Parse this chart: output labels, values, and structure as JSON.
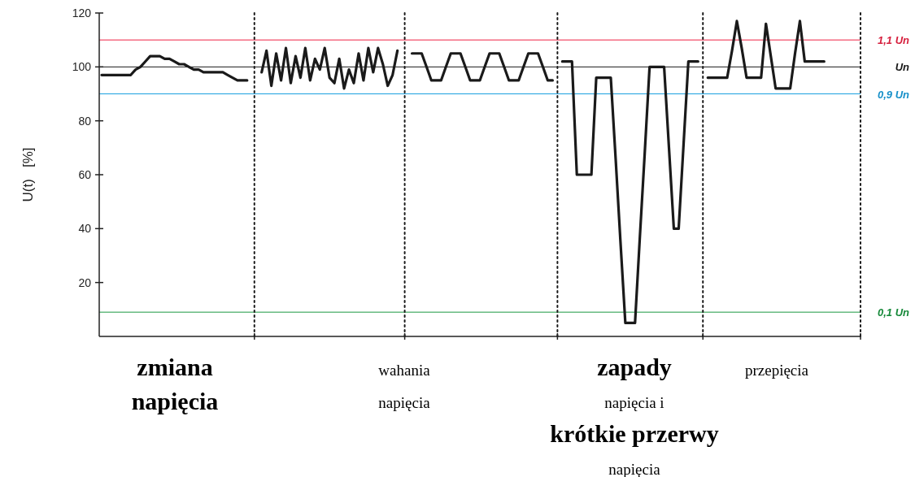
{
  "chart_data": {
    "type": "line",
    "ylabel": "U(t)   [%]",
    "ylim": [
      0,
      120
    ],
    "yticks": [
      20,
      40,
      60,
      80,
      100,
      120
    ],
    "categories": [
      null,
      null,
      null,
      null,
      null,
      null,
      null,
      null,
      null,
      null,
      null,
      null,
      null,
      null,
      null,
      null,
      null,
      null,
      null,
      null,
      null,
      null,
      null,
      null,
      null,
      null,
      null,
      null,
      null,
      null,
      null,
      null,
      null,
      null,
      null,
      null,
      null,
      null,
      null,
      null,
      null,
      null,
      null,
      null,
      null,
      null,
      null,
      null,
      null,
      null,
      null,
      null,
      null,
      null,
      null,
      null,
      null,
      null,
      null,
      null,
      null,
      null,
      null,
      null,
      null,
      null,
      null,
      null,
      null,
      null,
      null,
      null,
      null,
      null,
      null,
      null,
      null,
      null,
      null,
      null,
      null,
      null,
      null,
      null,
      null,
      null,
      null,
      null,
      null,
      null,
      null,
      null,
      null,
      null,
      null,
      null,
      null,
      null,
      null,
      null,
      null,
      null,
      null,
      null,
      null,
      null,
      null,
      null,
      null,
      null,
      null,
      null,
      null,
      null,
      null,
      null,
      null,
      null,
      null,
      null,
      null,
      null,
      null,
      null,
      null,
      null,
      null,
      null,
      null,
      null,
      null,
      null,
      null,
      null,
      null,
      null,
      null,
      null,
      null,
      null,
      null,
      null,
      null,
      null,
      null,
      null,
      null,
      null,
      null,
      null,
      null,
      null,
      null,
      null,
      null,
      null,
      null
    ],
    "series": [
      {
        "color": "#1a1a1a",
        "values": [
          97,
          97,
          97,
          97,
          97,
          97,
          97,
          99,
          100,
          102,
          104,
          104,
          104,
          103,
          103,
          102,
          101,
          101,
          100,
          99,
          99,
          98,
          98,
          98,
          98,
          98,
          97,
          96,
          95,
          95,
          95,
          null,
          null,
          98,
          106,
          93,
          105,
          95,
          107,
          94,
          104,
          96,
          107,
          95,
          103,
          99,
          107,
          96,
          94,
          103,
          92,
          99,
          94,
          105,
          95,
          107,
          98,
          107,
          101,
          93,
          97,
          106,
          null,
          null,
          105,
          105,
          105,
          100,
          95,
          95,
          95,
          100,
          105,
          105,
          105,
          100,
          95,
          95,
          95,
          100,
          105,
          105,
          105,
          100,
          95,
          95,
          95,
          100,
          105,
          105,
          105,
          100,
          95,
          95,
          null,
          102,
          102,
          102,
          60,
          60,
          60,
          60,
          96,
          96,
          96,
          96,
          66,
          35,
          5,
          5,
          5,
          37,
          68,
          100,
          100,
          100,
          100,
          70,
          40,
          40,
          71,
          102,
          102,
          102,
          null,
          96,
          96,
          96,
          96,
          96,
          106,
          117,
          107,
          96,
          96,
          96,
          96,
          116,
          104,
          92,
          92,
          92,
          92,
          105,
          117,
          102,
          102,
          102,
          102,
          102,
          null,
          null,
          null,
          null,
          null,
          null,
          null
        ]
      }
    ],
    "ref_lines": [
      {
        "axis": "y",
        "value": 110,
        "label": "1,1 Un",
        "color": "#ee2244"
      },
      {
        "axis": "y",
        "value": 100,
        "label": "Un",
        "color": "#1a1a1a"
      },
      {
        "axis": "y",
        "value": 90,
        "label": "0,9 Un",
        "color": "#1aa0e0"
      },
      {
        "axis": "y",
        "value": 9,
        "label": "0,1 Un",
        "color": "#1a9940"
      }
    ],
    "annotations": [
      "zmiana\nnapięcia",
      "wahania\nnapięcia",
      "zapady\nnapięcia i\nkrótkie przerwy\nnapięcia",
      "przepięcia"
    ]
  }
}
